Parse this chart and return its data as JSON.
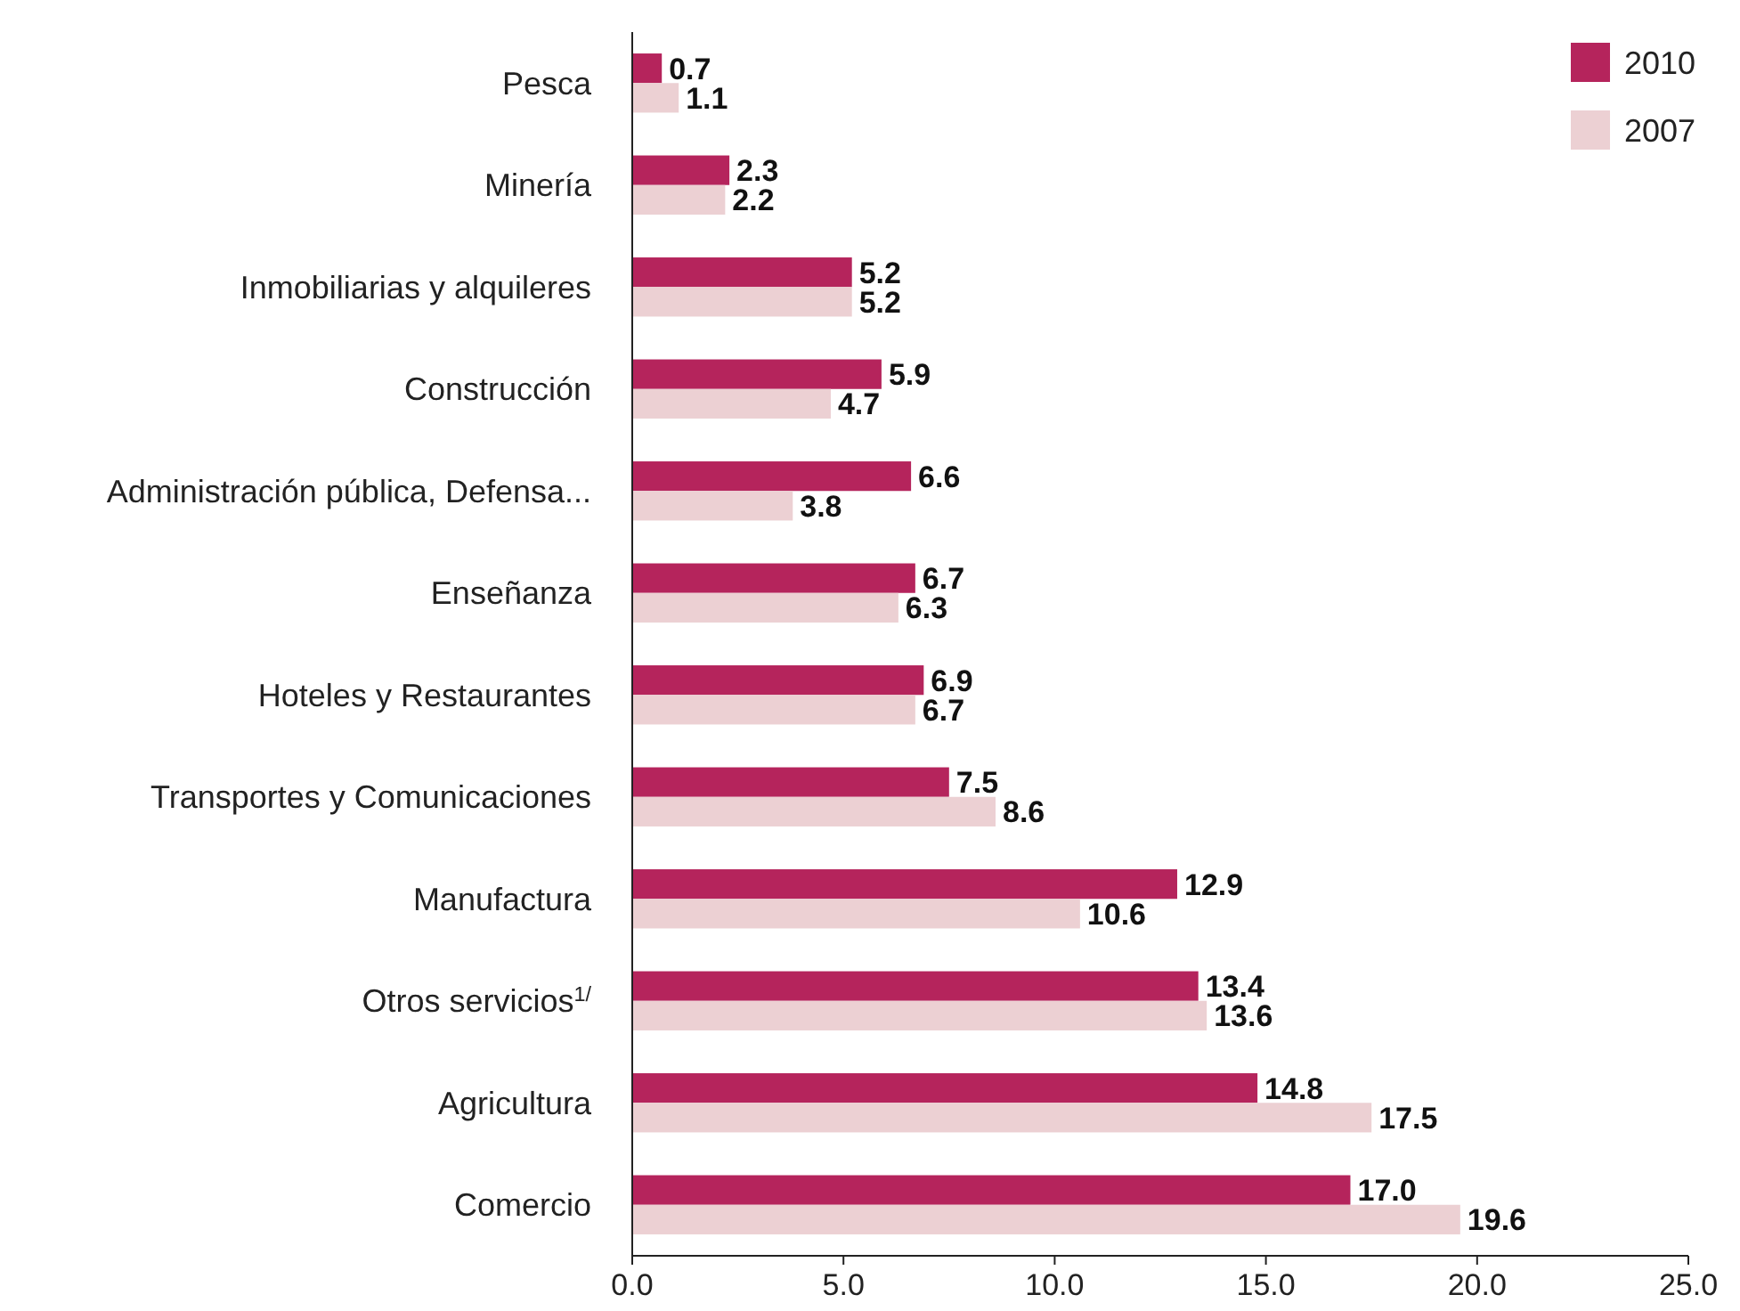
{
  "chart_data": {
    "type": "bar",
    "orientation": "horizontal",
    "categories": [
      "Pesca",
      "Minería",
      "Inmobiliarias y alquileres",
      "Construcción",
      "Administración pública, Defensa...",
      "Enseñanza",
      "Hoteles y Restaurantes",
      "Transportes y Comunicaciones",
      "Manufactura",
      "Otros servicios$^{1/}$",
      "Agricultura",
      "Comercio"
    ],
    "series": [
      {
        "name": "2010",
        "color": "#b5245c",
        "values": [
          0.7,
          2.3,
          5.2,
          5.9,
          6.6,
          6.7,
          6.9,
          7.5,
          12.9,
          13.4,
          14.8,
          17.0
        ],
        "value_labels": [
          "0.7",
          "2.3",
          "5.2",
          "5.9",
          "6.6",
          "6.7",
          "6.9",
          "7.5",
          "12.9",
          "13.4",
          "14.8",
          "17.0"
        ]
      },
      {
        "name": "2007",
        "color": "#ecd0d3",
        "values": [
          1.1,
          2.2,
          5.2,
          4.7,
          3.8,
          6.3,
          6.7,
          8.6,
          10.6,
          13.6,
          17.5,
          19.6
        ],
        "value_labels": [
          "1.1",
          "2.2",
          "5.2",
          "4.7",
          "3.8",
          "6.3",
          "6.7",
          "8.6",
          "10.6",
          "13.6",
          "17.5",
          "19.6"
        ]
      }
    ],
    "xlim": [
      0,
      25
    ],
    "xticks": [
      {
        "value": 0,
        "label": "0.0"
      },
      {
        "value": 5,
        "label": "5.0"
      },
      {
        "value": 10,
        "label": "10.0"
      },
      {
        "value": 15,
        "label": "15.0"
      },
      {
        "value": 20,
        "label": "20.0"
      },
      {
        "value": 25,
        "label": "25.0"
      }
    ],
    "grid": false,
    "legend": "top right"
  }
}
